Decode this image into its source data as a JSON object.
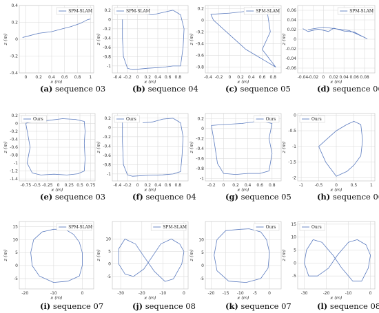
{
  "figure": {
    "line_color": "#5b7bbf",
    "grid_color": "#dcdcdc",
    "axis_color": "#333333"
  },
  "captions": [
    {
      "label": "(a)",
      "text": " sequence 03"
    },
    {
      "label": "(b)",
      "text": " sequence 04"
    },
    {
      "label": "(c)",
      "text": " sequence 05"
    },
    {
      "label": "(d)",
      "text": " sequence 06"
    },
    {
      "label": "(e)",
      "text": " sequence 03"
    },
    {
      "label": "(f)",
      "text": " sequence 04"
    },
    {
      "label": "(g)",
      "text": " sequence 05"
    },
    {
      "label": "(h)",
      "text": " sequence 06"
    },
    {
      "label": "(i)",
      "text": " sequence 07"
    },
    {
      "label": "(j)",
      "text": " sequence 08"
    },
    {
      "label": "(k)",
      "text": " sequence 07"
    },
    {
      "label": "(l)",
      "text": " sequence 08"
    }
  ],
  "chart_data": [
    {
      "type": "line",
      "series": [
        {
          "name": "SPM-SLAM",
          "x": [
            -0.05,
            0,
            0.2,
            0.4,
            0.55,
            0.7,
            0.85,
            0.95,
            1.0
          ],
          "y": [
            0.02,
            0.03,
            0.07,
            0.09,
            0.12,
            0.15,
            0.19,
            0.23,
            0.24
          ]
        }
      ],
      "xlabel": "x (m)",
      "ylabel": "z (m)",
      "xlim": [
        -0.1,
        1.05
      ],
      "ylim": [
        -0.4,
        0.4
      ],
      "xticks": [
        0.0,
        0.2,
        0.4,
        0.6,
        0.8,
        1.0
      ],
      "yticks": [
        -0.4,
        -0.2,
        0.0,
        0.2,
        0.4
      ],
      "legend": "top-right"
    },
    {
      "type": "line",
      "series": [
        {
          "name": "SPM-SLAM",
          "x": [
            -0.3,
            -0.3,
            -0.28,
            -0.2,
            -0.1,
            0.2,
            0.5,
            0.7,
            0.85,
            0.9,
            0.92,
            0.85,
            0.7,
            0.5,
            0.3,
            0.1
          ],
          "y": [
            0.0,
            -0.4,
            -0.8,
            -1.05,
            -1.08,
            -1.05,
            -1.03,
            -1.0,
            -1.0,
            -0.6,
            -0.2,
            0.1,
            0.2,
            0.15,
            0.1,
            0.12
          ]
        }
      ],
      "xlabel": "x (m)",
      "ylabel": "z (m)",
      "xlim": [
        -0.5,
        1.0
      ],
      "ylim": [
        -1.15,
        0.3
      ],
      "xticks": [
        -0.4,
        -0.2,
        0.0,
        0.2,
        0.4,
        0.6,
        0.8
      ],
      "yticks": [
        -1.0,
        -0.8,
        -0.6,
        -0.4,
        -0.2,
        0.0,
        0.2
      ],
      "legend": "top-left"
    },
    {
      "type": "line",
      "series": [
        {
          "name": "SPM-SLAM",
          "x": [
            -0.35,
            0.0,
            0.3,
            0.6,
            0.7,
            0.75,
            0.6,
            0.85,
            0.3,
            -0.3,
            -0.35
          ],
          "y": [
            0.1,
            0.12,
            0.15,
            0.17,
            0.1,
            -0.2,
            -0.5,
            -0.8,
            -0.5,
            0.0,
            0.1
          ]
        }
      ],
      "xlabel": "x (m)",
      "ylabel": "z (m)",
      "xlim": [
        -0.45,
        0.95
      ],
      "ylim": [
        -0.9,
        0.25
      ],
      "xticks": [
        -0.4,
        -0.2,
        0.0,
        0.2,
        0.4,
        0.6,
        0.8
      ],
      "yticks": [
        -0.8,
        -0.6,
        -0.4,
        -0.2,
        0.0,
        0.2
      ],
      "legend": "top-right"
    },
    {
      "type": "line",
      "series": [
        {
          "name": "SPM-SLAM",
          "x": [
            -0.04,
            -0.03,
            -0.01,
            0.01,
            0.02,
            0.04,
            0.06,
            0.07,
            0.085,
            0.05,
            0.0,
            -0.03
          ],
          "y": [
            0.022,
            0.016,
            0.021,
            0.016,
            0.023,
            0.017,
            0.015,
            0.009,
            0.001,
            0.018,
            0.025,
            0.02
          ]
        }
      ],
      "xlabel": "x (m)",
      "ylabel": "z (m)",
      "xlim": [
        -0.05,
        0.1
      ],
      "ylim": [
        -0.07,
        0.07
      ],
      "xticks": [
        -0.04,
        -0.02,
        0.0,
        0.02,
        0.04,
        0.06,
        0.08
      ],
      "yticks": [
        -0.06,
        -0.04,
        -0.02,
        0.0,
        0.02,
        0.04,
        0.06
      ],
      "legend": "top-right"
    },
    {
      "type": "line",
      "series": [
        {
          "name": "Ours",
          "x": [
            -0.75,
            -0.7,
            -0.65,
            -0.72,
            -0.6,
            -0.4,
            -0.1,
            0.2,
            0.45,
            0.6,
            0.62,
            0.6,
            0.62,
            0.6,
            0.4,
            0.1,
            -0.2,
            -0.5,
            -0.7,
            -0.75
          ],
          "y": [
            0.0,
            -0.3,
            -0.6,
            -1.0,
            -1.25,
            -1.3,
            -1.28,
            -1.3,
            -1.27,
            -1.2,
            -0.9,
            -0.5,
            -0.2,
            0.05,
            0.1,
            0.12,
            0.08,
            0.05,
            0.02,
            0.0
          ]
        }
      ],
      "xlabel": "x (m)",
      "ylabel": "z (m)",
      "xlim": [
        -0.9,
        0.85
      ],
      "ylim": [
        -1.45,
        0.25
      ],
      "xticks": [
        -0.75,
        -0.5,
        -0.25,
        0.0,
        0.25,
        0.5,
        0.75
      ],
      "yticks": [
        -1.4,
        -1.2,
        -1.0,
        -0.8,
        -0.6,
        -0.4,
        -0.2,
        0.0,
        0.2
      ],
      "legend": "top-left"
    },
    {
      "type": "line",
      "series": [
        {
          "name": "Ours",
          "x": [
            -0.3,
            -0.3,
            -0.28,
            -0.2,
            -0.1,
            0.2,
            0.5,
            0.7,
            0.85,
            0.88,
            0.9,
            0.85,
            0.7,
            0.5,
            0.3,
            0.1
          ],
          "y": [
            0.15,
            -0.3,
            -0.8,
            -1.02,
            -1.05,
            -1.03,
            -1.02,
            -1.0,
            -0.95,
            -0.6,
            -0.2,
            0.1,
            0.2,
            0.18,
            0.12,
            0.1
          ]
        }
      ],
      "xlabel": "x (m)",
      "ylabel": "z (m)",
      "xlim": [
        -0.5,
        1.0
      ],
      "ylim": [
        -1.15,
        0.3
      ],
      "xticks": [
        -0.4,
        -0.2,
        0.0,
        0.2,
        0.4,
        0.6,
        0.8
      ],
      "yticks": [
        -1.0,
        -0.8,
        -0.6,
        -0.4,
        -0.2,
        0.0,
        0.2
      ],
      "legend": "top-left"
    },
    {
      "type": "line",
      "series": [
        {
          "name": "Ours",
          "x": [
            -0.2,
            -0.15,
            -0.1,
            0.0,
            0.2,
            0.4,
            0.6,
            0.75,
            0.8,
            0.75,
            0.8,
            0.6,
            0.3,
            0.0,
            -0.2,
            -0.2
          ],
          "y": [
            0.05,
            -0.3,
            -0.7,
            -0.9,
            -0.92,
            -0.9,
            -0.9,
            -0.85,
            -0.5,
            -0.2,
            0.1,
            0.15,
            0.1,
            0.08,
            0.06,
            0.05
          ]
        }
      ],
      "xlabel": "x (m)",
      "ylabel": "z (m)",
      "xlim": [
        -0.3,
        0.95
      ],
      "ylim": [
        -1.05,
        0.3
      ],
      "xticks": [
        -0.2,
        0.0,
        0.2,
        0.4,
        0.6,
        0.8
      ],
      "yticks": [
        -1.0,
        -0.8,
        -0.6,
        -0.4,
        -0.2,
        0.0,
        0.2
      ],
      "legend": "top-right"
    },
    {
      "type": "line",
      "series": [
        {
          "name": "Ours",
          "x": [
            -0.5,
            -0.3,
            0.0,
            0.3,
            0.5,
            0.7,
            0.75,
            0.7,
            0.5,
            0.3,
            0.0,
            -0.3,
            -0.5
          ],
          "y": [
            -1.0,
            -0.8,
            -0.5,
            -0.3,
            -0.2,
            -0.3,
            -0.8,
            -1.3,
            -1.6,
            -1.8,
            -1.95,
            -1.5,
            -1.0
          ]
        }
      ],
      "xlabel": "x (m)",
      "ylabel": "z (m)",
      "xlim": [
        -1.1,
        1.1
      ],
      "ylim": [
        -2.1,
        0.05
      ],
      "xticks": [
        -1.0,
        -0.5,
        0.0,
        0.5,
        1.0
      ],
      "yticks": [
        -2.0,
        -1.5,
        -1.0,
        -0.5,
        0.0
      ],
      "legend": "top-left"
    },
    {
      "type": "line",
      "series": [
        {
          "name": "SPM-SLAM",
          "x": [
            -10,
            -14,
            -17,
            -18,
            -17.5,
            -15,
            -10,
            -5,
            -1,
            0,
            0,
            -1,
            -3,
            -6,
            -10
          ],
          "y": [
            14,
            13,
            10,
            5,
            0,
            -4,
            -6.5,
            -6,
            -4,
            0,
            5,
            9,
            12,
            14,
            14
          ]
        }
      ],
      "xlabel": "x (m)",
      "ylabel": "z (m)",
      "xlim": [
        -22,
        4
      ],
      "ylim": [
        -9,
        17
      ],
      "xticks": [
        -20,
        -10,
        0
      ],
      "yticks": [
        -5,
        0,
        5,
        10,
        15
      ],
      "legend": "top-right"
    },
    {
      "type": "line",
      "series": [
        {
          "name": "SPM-SLAM",
          "x": [
            0,
            -2,
            -6,
            -11,
            -15,
            -19,
            -24,
            -28,
            -31,
            -31,
            -28,
            -23,
            -19,
            -14,
            -9,
            -5,
            -1,
            0
          ],
          "y": [
            5,
            8,
            10,
            8,
            3,
            -2,
            -5,
            -4,
            0,
            6,
            10,
            8,
            3,
            -3,
            -7,
            -6,
            0,
            5
          ]
        }
      ],
      "xlabel": "x (m)",
      "ylabel": "z (m)",
      "xlim": [
        -34,
        2
      ],
      "ylim": [
        -10,
        17
      ],
      "xticks": [
        -30,
        -20,
        -10,
        0
      ],
      "yticks": [
        -5,
        0,
        5,
        10
      ],
      "legend": "top-right"
    },
    {
      "type": "line",
      "series": [
        {
          "name": "Ours",
          "x": [
            -10,
            -15,
            -18,
            -19,
            -18,
            -14,
            -8,
            -3,
            -0.5,
            0,
            -1,
            -3,
            -7,
            -10
          ],
          "y": [
            14,
            13.5,
            10,
            4,
            -2,
            -6,
            -6.5,
            -5,
            -1,
            5,
            10,
            13,
            14.2,
            14
          ]
        }
      ],
      "xlabel": "x (m)",
      "ylabel": "z (m)",
      "xlim": [
        -22,
        4
      ],
      "ylim": [
        -9,
        17
      ],
      "xticks": [
        -20,
        -15,
        -10,
        -5,
        0
      ],
      "yticks": [
        -5,
        0,
        5,
        10
      ],
      "legend": "top-right"
    },
    {
      "type": "line",
      "series": [
        {
          "name": "Ours",
          "x": [
            0,
            -2,
            -6,
            -10,
            -15,
            -19,
            -24,
            -28,
            -30,
            -29,
            -26,
            -22,
            -17,
            -13,
            -8,
            -4,
            -1,
            0
          ],
          "y": [
            3,
            7,
            9,
            8,
            3,
            -2,
            -5,
            -5,
            0,
            5,
            9,
            8,
            3,
            -2,
            -7,
            -7,
            -2,
            3
          ]
        }
      ],
      "xlabel": "x (m)",
      "ylabel": "z (m)",
      "xlim": [
        -33,
        2
      ],
      "ylim": [
        -10,
        16
      ],
      "xticks": [
        -30,
        -20,
        -10,
        0
      ],
      "yticks": [
        -5,
        0,
        5,
        10,
        15
      ],
      "legend": "top-left"
    }
  ]
}
